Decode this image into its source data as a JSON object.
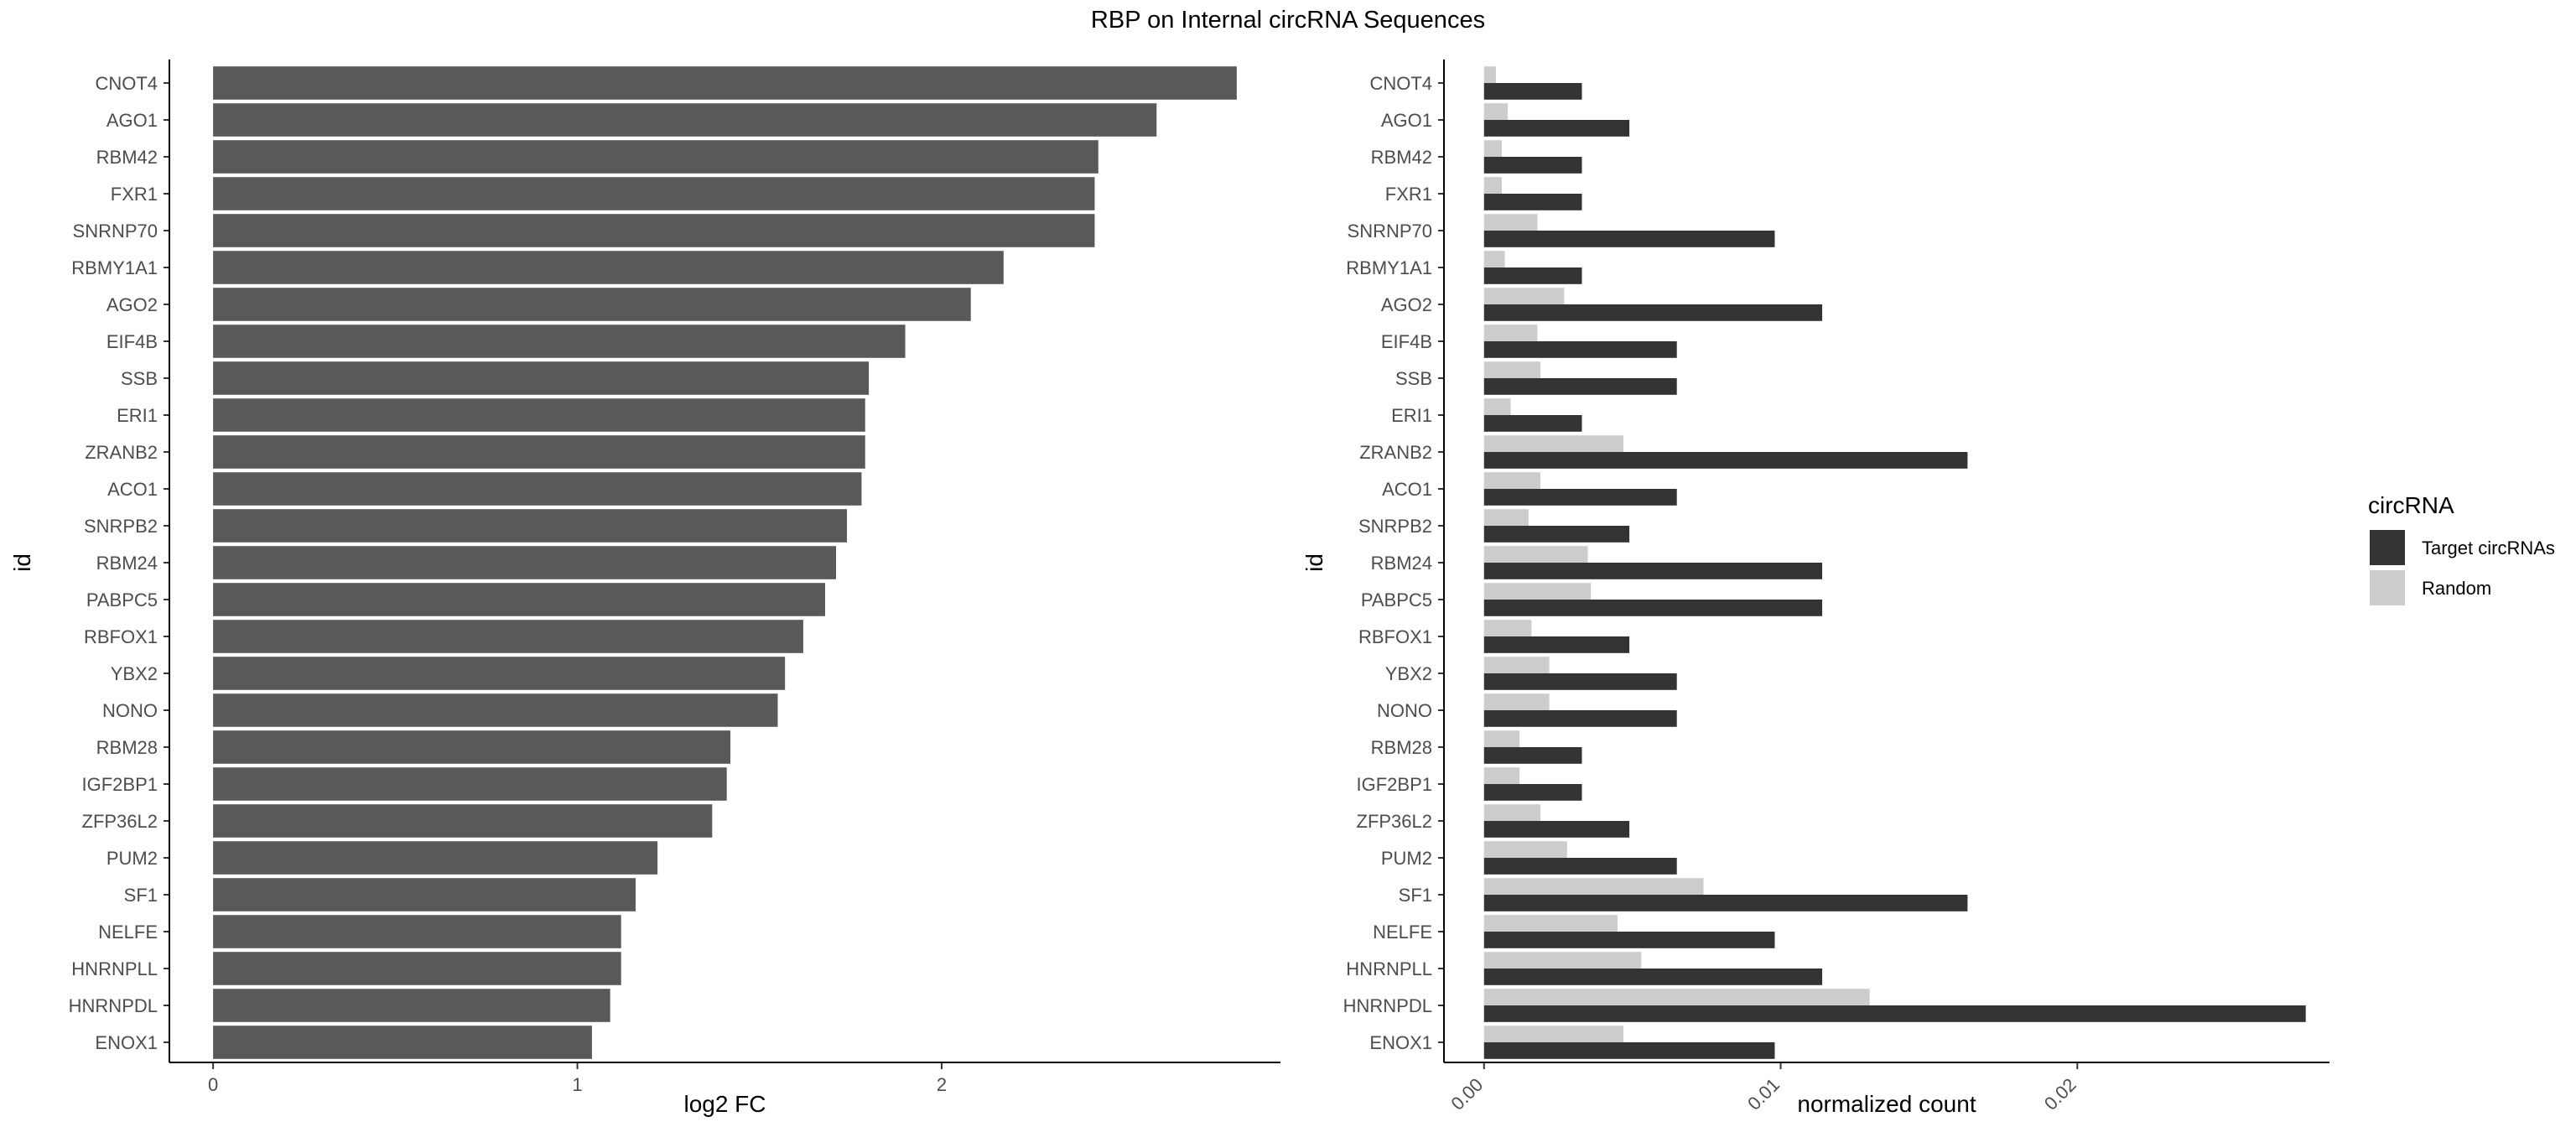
{
  "title": "RBP on Internal circRNA Sequences",
  "colors": {
    "bar_left": "#595959",
    "target": "#333333",
    "random": "#cccccc",
    "axis": "#000000",
    "tick_text": "#4d4d4d"
  },
  "legend": {
    "title": "circRNA",
    "position": "right",
    "items": [
      {
        "label": "Target circRNAs",
        "color_key": "target"
      },
      {
        "label": "Random",
        "color_key": "random"
      }
    ]
  },
  "chart_data": [
    {
      "type": "bar",
      "orientation": "horizontal",
      "xlabel": "log2 FC",
      "ylabel": "id",
      "xlim": [
        -0.12,
        2.93
      ],
      "xticks": [
        0,
        1,
        2
      ],
      "grid": false,
      "categories": [
        "CNOT4",
        "AGO1",
        "RBM42",
        "FXR1",
        "SNRNP70",
        "RBMY1A1",
        "AGO2",
        "EIF4B",
        "SSB",
        "ERI1",
        "ZRANB2",
        "ACO1",
        "SNRPB2",
        "RBM24",
        "PABPC5",
        "RBFOX1",
        "YBX2",
        "NONO",
        "RBM28",
        "IGF2BP1",
        "ZFP36L2",
        "PUM2",
        "SF1",
        "NELFE",
        "HNRNPLL",
        "HNRNPDL",
        "ENOX1"
      ],
      "values": [
        2.81,
        2.59,
        2.43,
        2.42,
        2.42,
        2.17,
        2.08,
        1.9,
        1.8,
        1.79,
        1.79,
        1.78,
        1.74,
        1.71,
        1.68,
        1.62,
        1.57,
        1.55,
        1.42,
        1.41,
        1.37,
        1.22,
        1.16,
        1.12,
        1.12,
        1.09,
        1.04
      ]
    },
    {
      "type": "bar",
      "orientation": "horizontal",
      "grouped": true,
      "xlabel": "normalized count",
      "ylabel": "id",
      "xlim": [
        -0.00135,
        0.0285
      ],
      "xticks": [
        0.0,
        0.01,
        0.02
      ],
      "xtick_labels": [
        "0.00",
        "0.01",
        "0.02"
      ],
      "grid": false,
      "categories": [
        "CNOT4",
        "AGO1",
        "RBM42",
        "FXR1",
        "SNRNP70",
        "RBMY1A1",
        "AGO2",
        "EIF4B",
        "SSB",
        "ERI1",
        "ZRANB2",
        "ACO1",
        "SNRPB2",
        "RBM24",
        "PABPC5",
        "RBFOX1",
        "YBX2",
        "NONO",
        "RBM28",
        "IGF2BP1",
        "ZFP36L2",
        "PUM2",
        "SF1",
        "NELFE",
        "HNRNPLL",
        "HNRNPDL",
        "ENOX1"
      ],
      "series": [
        {
          "name": "Target circRNAs",
          "color_key": "target",
          "values": [
            0.0033,
            0.0049,
            0.0033,
            0.0033,
            0.0098,
            0.0033,
            0.0114,
            0.0065,
            0.0065,
            0.0033,
            0.0163,
            0.0065,
            0.0049,
            0.0114,
            0.0114,
            0.0049,
            0.0065,
            0.0065,
            0.0033,
            0.0033,
            0.0049,
            0.0065,
            0.0163,
            0.0098,
            0.0114,
            0.0277,
            0.0098
          ]
        },
        {
          "name": "Random",
          "color_key": "random",
          "values": [
            0.0004,
            0.0008,
            0.0006,
            0.0006,
            0.0018,
            0.0007,
            0.0027,
            0.0018,
            0.0019,
            0.0009,
            0.0047,
            0.0019,
            0.0015,
            0.0035,
            0.0036,
            0.0016,
            0.0022,
            0.0022,
            0.0012,
            0.0012,
            0.0019,
            0.0028,
            0.0074,
            0.0045,
            0.0053,
            0.013,
            0.0047
          ]
        }
      ]
    }
  ]
}
